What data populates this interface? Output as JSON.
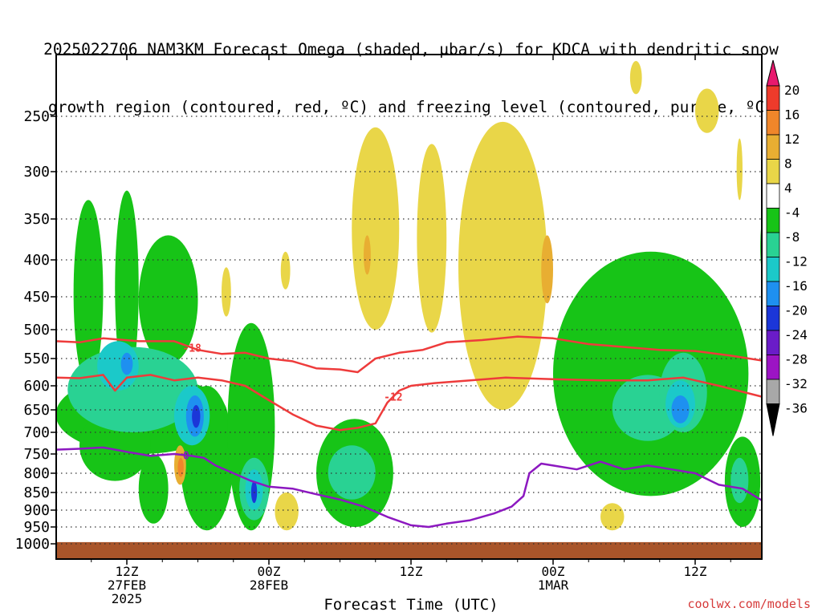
{
  "title": {
    "line1": "2025022706 NAM3KM Forecast Omega (shaded, μbar/s) for KDCA with dendritic snow",
    "line2": "growth region (contoured, red, ºC) and freezing level (contoured, purple, ºC)"
  },
  "credit": "coolwx.com/models",
  "chart_data": {
    "type": "heatmap",
    "title": "2025022706 NAM3KM Forecast Omega (shaded, μbar/s) for KDCA with dendritic snow growth region (contoured, red, ºC) and freezing level (contoured, purple, ºC)",
    "xlabel": "Forecast Time (UTC)",
    "ylabel": "",
    "x_range_hours": [
      0,
      60
    ],
    "y_axis": "pressure (hPa), decreasing upward",
    "y_range": [
      1000,
      200
    ],
    "y_ticks": [
      250,
      300,
      350,
      400,
      450,
      500,
      550,
      600,
      650,
      700,
      750,
      800,
      850,
      900,
      950,
      1000
    ],
    "y_tick_labels": [
      "250",
      "300",
      "350",
      "400",
      "450",
      "500",
      "550",
      "600",
      "650",
      "700",
      "750",
      "800",
      "850",
      "900",
      "950",
      "1000"
    ],
    "x_ticks": [
      {
        "hour": 6,
        "lines": [
          "12Z",
          "27FEB",
          "2025"
        ]
      },
      {
        "hour": 18,
        "lines": [
          "00Z",
          "28FEB"
        ]
      },
      {
        "hour": 30,
        "lines": [
          "12Z"
        ]
      },
      {
        "hour": 42,
        "lines": [
          "00Z",
          "1MAR"
        ]
      },
      {
        "hour": 54,
        "lines": [
          "12Z"
        ]
      }
    ],
    "grid": "dotted horizontal lines at pressure ticks",
    "colorbar": {
      "labels": [
        "20",
        "16",
        "12",
        "8",
        "4",
        "-4",
        "-8",
        "-12",
        "-16",
        "-20",
        "-24",
        "-28",
        "-32",
        "-36"
      ],
      "colors": [
        "#e8196e",
        "#ee3b2b",
        "#f0862a",
        "#e8ae32",
        "#e9d648",
        "#ffffff",
        "#17c417",
        "#29d293",
        "#1bc9c9",
        "#1e90f0",
        "#1b36d8",
        "#6a1cc8",
        "#9c14c4",
        "#a8a8a8",
        "#000000"
      ]
    },
    "omega_regions": [
      {
        "value": -8,
        "color": "#17c417",
        "hours": [
          0,
          14.5
        ],
        "p": [
          580,
          750
        ]
      },
      {
        "value": -8,
        "color": "#17c417",
        "hours": [
          1.5,
          4
        ],
        "p": [
          330,
          600
        ]
      },
      {
        "value": -8,
        "color": "#17c417",
        "hours": [
          5,
          7
        ],
        "p": [
          320,
          600
        ]
      },
      {
        "value": -8,
        "color": "#17c417",
        "hours": [
          2,
          8
        ],
        "p": [
          650,
          820
        ]
      },
      {
        "value": -8,
        "color": "#17c417",
        "hours": [
          7,
          12
        ],
        "p": [
          370,
          560
        ]
      },
      {
        "value": -8,
        "color": "#17c417",
        "hours": [
          7,
          9.5
        ],
        "p": [
          750,
          940
        ]
      },
      {
        "value": -8,
        "color": "#17c417",
        "hours": [
          10.5,
          15
        ],
        "p": [
          600,
          960
        ]
      },
      {
        "value": -8,
        "color": "#17c417",
        "hours": [
          14.5,
          18.5
        ],
        "p": [
          490,
          960
        ]
      },
      {
        "value": -8,
        "color": "#17c417",
        "hours": [
          22,
          28.5
        ],
        "p": [
          670,
          950
        ]
      },
      {
        "value": -8,
        "color": "#17c417",
        "hours": [
          42,
          58.5
        ],
        "p": [
          390,
          860
        ]
      },
      {
        "value": -8,
        "color": "#17c417",
        "hours": [
          56.5,
          59.5
        ],
        "p": [
          710,
          950
        ]
      },
      {
        "value": -8,
        "color": "#17c417",
        "hours": [
          59.5,
          60
        ],
        "p": [
          350,
          420
        ]
      },
      {
        "value": -12,
        "color": "#29d293",
        "hours": [
          1,
          12
        ],
        "p": [
          530,
          700
        ]
      },
      {
        "value": -12,
        "color": "#29d293",
        "hours": [
          23,
          27
        ],
        "p": [
          730,
          870
        ]
      },
      {
        "value": -12,
        "color": "#29d293",
        "hours": [
          47,
          53
        ],
        "p": [
          580,
          720
        ]
      },
      {
        "value": -12,
        "color": "#29d293",
        "hours": [
          51,
          55
        ],
        "p": [
          540,
          700
        ]
      },
      {
        "value": -12,
        "color": "#29d293",
        "hours": [
          57,
          58.5
        ],
        "p": [
          760,
          880
        ]
      },
      {
        "value": -12,
        "color": "#29d293",
        "hours": [
          15.5,
          18
        ],
        "p": [
          760,
          930
        ]
      },
      {
        "value": -16,
        "color": "#1bc9c9",
        "hours": [
          3.5,
          7
        ],
        "p": [
          520,
          610
        ]
      },
      {
        "value": -16,
        "color": "#1bc9c9",
        "hours": [
          10,
          13
        ],
        "p": [
          600,
          730
        ]
      },
      {
        "value": -16,
        "color": "#1bc9c9",
        "hours": [
          16,
          17.5
        ],
        "p": [
          790,
          900
        ]
      },
      {
        "value": -16,
        "color": "#1bc9c9",
        "hours": [
          51.5,
          54
        ],
        "p": [
          590,
          690
        ]
      },
      {
        "value": -20,
        "color": "#1e90f0",
        "hours": [
          5.5,
          6.5
        ],
        "p": [
          540,
          580
        ]
      },
      {
        "value": -20,
        "color": "#1e90f0",
        "hours": [
          11,
          12.5
        ],
        "p": [
          620,
          710
        ]
      },
      {
        "value": -20,
        "color": "#1e90f0",
        "hours": [
          52,
          53.5
        ],
        "p": [
          620,
          680
        ]
      },
      {
        "value": -24,
        "color": "#1b36d8",
        "hours": [
          11.5,
          12.2
        ],
        "p": [
          640,
          690
        ]
      },
      {
        "value": -24,
        "color": "#1b36d8",
        "hours": [
          16.5,
          17
        ],
        "p": [
          820,
          880
        ]
      },
      {
        "value": 4,
        "color": "#e9d648",
        "hours": [
          25,
          29
        ],
        "p": [
          260,
          500
        ]
      },
      {
        "value": 4,
        "color": "#e9d648",
        "hours": [
          30.5,
          33
        ],
        "p": [
          275,
          505
        ]
      },
      {
        "value": 4,
        "color": "#e9d648",
        "hours": [
          34,
          41.5
        ],
        "p": [
          255,
          650
        ]
      },
      {
        "value": 4,
        "color": "#e9d648",
        "hours": [
          48.5,
          49.5
        ],
        "p": [
          200,
          230
        ]
      },
      {
        "value": 4,
        "color": "#e9d648",
        "hours": [
          54,
          56
        ],
        "p": [
          225,
          265
        ]
      },
      {
        "value": 4,
        "color": "#e9d648",
        "hours": [
          57.5,
          58
        ],
        "p": [
          270,
          330
        ]
      },
      {
        "value": 4,
        "color": "#e9d648",
        "hours": [
          18.5,
          20.5
        ],
        "p": [
          850,
          960
        ]
      },
      {
        "value": 4,
        "color": "#e9d648",
        "hours": [
          46,
          48
        ],
        "p": [
          880,
          960
        ]
      },
      {
        "value": 4,
        "color": "#e9d648",
        "hours": [
          19,
          19.8
        ],
        "p": [
          390,
          440
        ]
      },
      {
        "value": 4,
        "color": "#e9d648",
        "hours": [
          14,
          14.8
        ],
        "p": [
          410,
          480
        ]
      },
      {
        "value": 8,
        "color": "#e8ae32",
        "hours": [
          10,
          11
        ],
        "p": [
          730,
          830
        ]
      },
      {
        "value": 8,
        "color": "#e8ae32",
        "hours": [
          41,
          42
        ],
        "p": [
          370,
          460
        ]
      },
      {
        "value": 8,
        "color": "#e8ae32",
        "hours": [
          26,
          26.6
        ],
        "p": [
          370,
          420
        ]
      },
      {
        "value": 12,
        "color": "#f0862a",
        "hours": [
          10.3,
          10.8
        ],
        "p": [
          760,
          810
        ]
      }
    ],
    "contours": [
      {
        "name": "-18",
        "color": "#ee3b3b",
        "label": "-18",
        "label_hour": 11.5,
        "hours": [
          0,
          2,
          4,
          7,
          10,
          12,
          14,
          16,
          18,
          20,
          22,
          24,
          25.5,
          27,
          29,
          31,
          33,
          36,
          39,
          42,
          45,
          48,
          51,
          54,
          57,
          60
        ],
        "p": [
          520,
          522,
          515,
          520,
          520,
          535,
          542,
          540,
          550,
          555,
          568,
          570,
          575,
          550,
          540,
          535,
          522,
          518,
          512,
          515,
          525,
          530,
          535,
          537,
          545,
          555
        ]
      },
      {
        "name": "-12",
        "color": "#ee3b3b",
        "label": "-12",
        "label_hour": 28.5,
        "hours": [
          0,
          2,
          4,
          5,
          6,
          8,
          10,
          12,
          14,
          16,
          18,
          20,
          22,
          24,
          25.5,
          27,
          28,
          29,
          30,
          32,
          35,
          38,
          42,
          46,
          50,
          53,
          56,
          60
        ],
        "p": [
          585,
          586,
          580,
          610,
          585,
          580,
          590,
          585,
          590,
          600,
          630,
          660,
          685,
          695,
          690,
          680,
          635,
          610,
          600,
          595,
          590,
          585,
          588,
          590,
          590,
          585,
          600,
          625
        ]
      },
      {
        "name": "0",
        "color": "#8c18c0",
        "label": "0",
        "label_hour": 11,
        "hours": [
          0,
          2,
          4,
          6,
          8,
          10,
          11.5,
          12.5,
          13.5,
          15,
          16.5,
          18,
          20,
          22,
          24,
          26,
          28,
          30,
          31.5,
          33,
          35,
          37,
          38.5,
          39.5,
          40,
          41,
          42,
          44,
          46,
          48,
          50,
          52,
          54,
          56,
          58,
          60
        ],
        "p": [
          740,
          738,
          735,
          745,
          755,
          750,
          755,
          760,
          780,
          800,
          820,
          835,
          840,
          855,
          870,
          890,
          920,
          945,
          950,
          940,
          930,
          910,
          890,
          860,
          800,
          775,
          780,
          790,
          770,
          790,
          780,
          790,
          800,
          830,
          840,
          880
        ]
      }
    ],
    "surface": {
      "color": "#a9552a",
      "p_top": 995
    }
  }
}
